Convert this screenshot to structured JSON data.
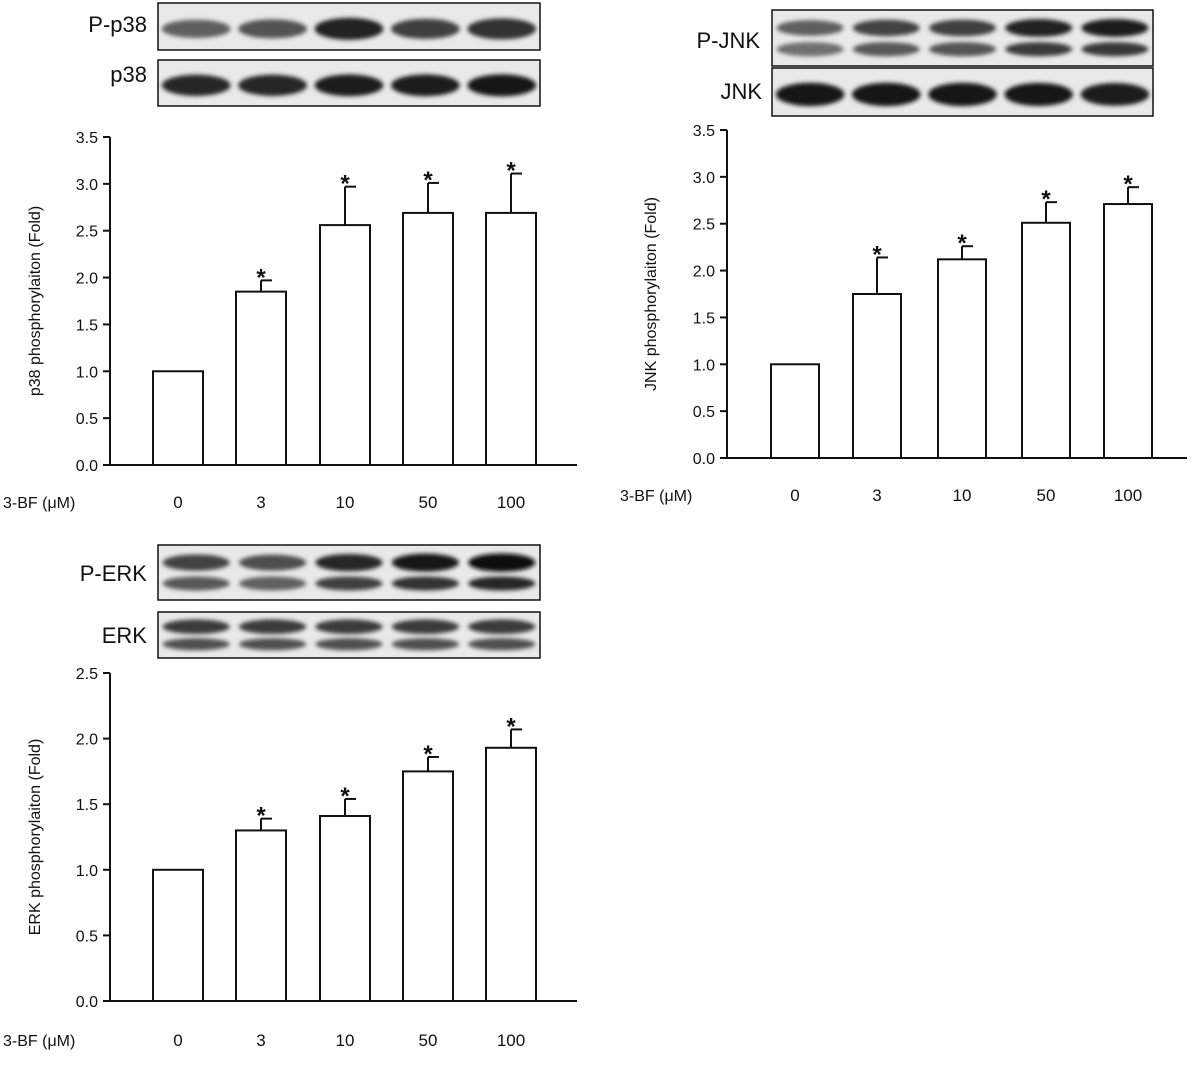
{
  "chart_data": [
    {
      "type": "bar",
      "blot_labels": [
        "P-p38",
        "p38"
      ],
      "xlabel": "3-BF (μM)",
      "ylabel": "p38 phosphorylaiton (Fold)",
      "categories": [
        "0",
        "3",
        "10",
        "50",
        "100"
      ],
      "values": [
        1.0,
        1.85,
        2.56,
        2.69,
        2.69
      ],
      "errors": [
        0.0,
        0.12,
        0.41,
        0.32,
        0.42
      ],
      "significance": [
        "",
        "*",
        "*",
        "*",
        "*"
      ],
      "ylim": [
        0,
        3.5
      ],
      "yticks": [
        "0.0",
        "0.5",
        "1.0",
        "1.5",
        "2.0",
        "2.5",
        "3.0",
        "3.5"
      ],
      "band_intensity": {
        "top": [
          0.55,
          0.62,
          0.88,
          0.72,
          0.8
        ],
        "bottom": [
          0.85,
          0.85,
          0.9,
          0.9,
          0.92
        ]
      }
    },
    {
      "type": "bar",
      "blot_labels": [
        "P-JNK",
        "JNK"
      ],
      "xlabel": "3-BF (μM)",
      "ylabel": "JNK phosphorylaiton (Fold)",
      "categories": [
        "0",
        "3",
        "10",
        "50",
        "100"
      ],
      "values": [
        1.0,
        1.75,
        2.12,
        2.51,
        2.71
      ],
      "errors": [
        0.0,
        0.39,
        0.14,
        0.22,
        0.18
      ],
      "significance": [
        "",
        "*",
        "*",
        "*",
        "*"
      ],
      "ylim": [
        0,
        3.5
      ],
      "yticks": [
        "0.0",
        "0.5",
        "1.0",
        "1.5",
        "2.0",
        "2.5",
        "3.0",
        "3.5"
      ],
      "band_intensity": {
        "top": [
          0.55,
          0.7,
          0.72,
          0.88,
          0.9
        ],
        "bottom": [
          0.95,
          0.95,
          0.95,
          0.93,
          0.9
        ]
      }
    },
    {
      "type": "bar",
      "blot_labels": [
        "P-ERK",
        "ERK"
      ],
      "xlabel": "3-BF (μM)",
      "ylabel": "ERK phosphorylaiton (Fold)",
      "categories": [
        "0",
        "3",
        "10",
        "50",
        "100"
      ],
      "values": [
        1.0,
        1.3,
        1.41,
        1.75,
        1.93
      ],
      "errors": [
        0.0,
        0.09,
        0.13,
        0.11,
        0.14
      ],
      "significance": [
        "",
        "*",
        "*",
        "*",
        "*"
      ],
      "ylim": [
        0,
        2.5
      ],
      "yticks": [
        "0.0",
        "0.5",
        "1.0",
        "1.5",
        "2.0",
        "2.5"
      ],
      "band_intensity": {
        "top": [
          0.7,
          0.65,
          0.85,
          0.95,
          1.0
        ],
        "bottom": [
          0.75,
          0.75,
          0.75,
          0.75,
          0.75
        ]
      }
    }
  ]
}
